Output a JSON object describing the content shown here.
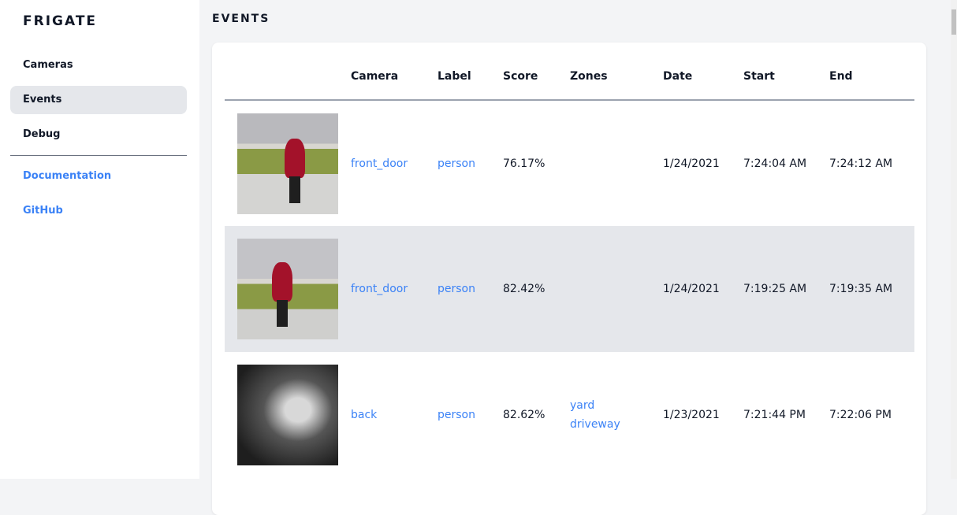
{
  "sidebar": {
    "brand": "FRIGATE",
    "items": [
      {
        "label": "Cameras"
      },
      {
        "label": "Events",
        "active": true
      },
      {
        "label": "Debug"
      }
    ],
    "links": [
      {
        "label": "Documentation"
      },
      {
        "label": "GitHub"
      }
    ]
  },
  "page": {
    "title": "EVENTS"
  },
  "table": {
    "headers": [
      "Camera",
      "Label",
      "Score",
      "Zones",
      "Date",
      "Start",
      "End"
    ],
    "rows": [
      {
        "camera": "front_door",
        "label": "person",
        "score": "76.17%",
        "zones": [
          "",
          ""
        ],
        "date": "1/24/2021",
        "start": "7:24:04 AM",
        "end": "7:24:12 AM"
      },
      {
        "camera": "front_door",
        "label": "person",
        "score": "82.42%",
        "zones": [
          "",
          ""
        ],
        "date": "1/24/2021",
        "start": "7:19:25 AM",
        "end": "7:19:35 AM"
      },
      {
        "camera": "back",
        "label": "person",
        "score": "82.62%",
        "zones": [
          "yard",
          "driveway"
        ],
        "date": "1/23/2021",
        "start": "7:21:44 PM",
        "end": "7:22:06 PM"
      }
    ]
  },
  "colors": {
    "link": "#3b82f6",
    "active_nav": "#e5e7eb",
    "background": "#f3f4f6"
  }
}
